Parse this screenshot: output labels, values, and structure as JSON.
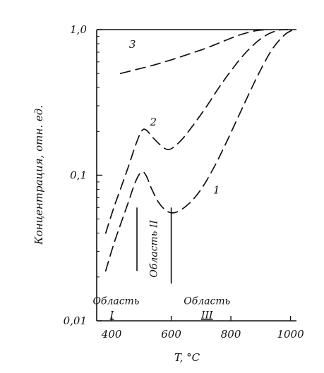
{
  "chart_data": {
    "type": "line",
    "xlabel": "T, °C",
    "ylabel": "Концентрация,  отн. ед.",
    "xlim": [
      350,
      1020
    ],
    "ylim": [
      0.01,
      1.0
    ],
    "yscale": "log",
    "grid": false,
    "x_ticks": [
      {
        "value": 400,
        "label": "400"
      },
      {
        "value": 600,
        "label": "600"
      },
      {
        "value": 800,
        "label": "800"
      },
      {
        "value": 1000,
        "label": "1000"
      }
    ],
    "y_ticks": [
      {
        "value": 1.0,
        "label": "1,0"
      },
      {
        "value": 0.1,
        "label": "0,1"
      },
      {
        "value": 0.01,
        "label": "0,01"
      }
    ],
    "series": [
      {
        "name": "1",
        "style": "dashed",
        "x": [
          380,
          410,
          450,
          480,
          500,
          515,
          535,
          560,
          590,
          620,
          660,
          700,
          740,
          780,
          820,
          860,
          900,
          940,
          980,
          1010
        ],
        "y": [
          0.022,
          0.035,
          0.06,
          0.09,
          0.105,
          0.1,
          0.08,
          0.064,
          0.056,
          0.056,
          0.064,
          0.08,
          0.11,
          0.16,
          0.24,
          0.36,
          0.53,
          0.74,
          0.92,
          1.0
        ]
      },
      {
        "name": "2",
        "style": "dashed",
        "x": [
          380,
          410,
          450,
          480,
          500,
          515,
          540,
          570,
          590,
          610,
          640,
          680,
          720,
          760,
          800,
          840,
          880,
          920,
          960,
          990
        ],
        "y": [
          0.04,
          0.062,
          0.105,
          0.16,
          0.2,
          0.205,
          0.18,
          0.157,
          0.15,
          0.157,
          0.18,
          0.23,
          0.3,
          0.4,
          0.52,
          0.66,
          0.8,
          0.92,
          0.99,
          1.0
        ]
      },
      {
        "name": "3",
        "style": "dashed",
        "x": [
          430,
          480,
          540,
          600,
          660,
          720,
          780,
          830,
          880,
          920
        ],
        "y": [
          0.5,
          0.53,
          0.57,
          0.62,
          0.68,
          0.75,
          0.84,
          0.92,
          0.98,
          1.0
        ]
      }
    ],
    "boundaries": [
      {
        "x": 485,
        "y_from": 0.022,
        "y_to": 0.06
      },
      {
        "x": 600,
        "y_from": 0.018,
        "y_to": 0.06
      }
    ],
    "regions": [
      {
        "label": "Область I",
        "x": 415,
        "y": 0.013
      },
      {
        "label": "Область II",
        "x": 540,
        "y": 0.02
      },
      {
        "label": "Область III",
        "x": 720,
        "y": 0.013
      }
    ]
  }
}
